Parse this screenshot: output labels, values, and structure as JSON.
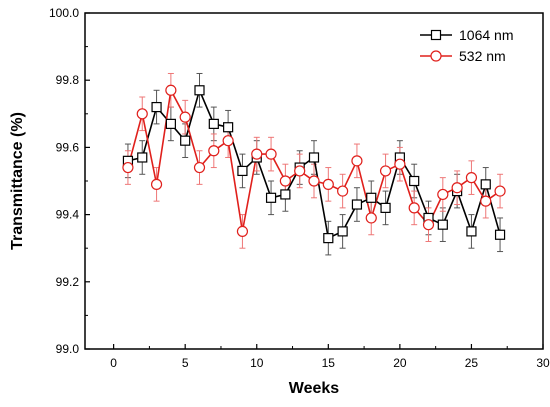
{
  "chart_data": {
    "type": "line",
    "xlabel": "Weeks",
    "ylabel": "Transmittance (%)",
    "xlim": [
      -2,
      30
    ],
    "ylim": [
      99.0,
      100.0
    ],
    "x_ticks": [
      0,
      5,
      10,
      15,
      20,
      25,
      30
    ],
    "y_ticks": [
      99.0,
      99.2,
      99.4,
      99.6,
      99.8,
      100.0
    ],
    "x_tick_labels": [
      "0",
      "5",
      "10",
      "15",
      "20",
      "25",
      "30"
    ],
    "y_tick_labels": [
      "99.0",
      "99.2",
      "99.4",
      "99.6",
      "99.8",
      "100.0"
    ],
    "legend_position": "top-right",
    "grid": false,
    "series": [
      {
        "name": "1064 nm",
        "color": "#000000",
        "marker": "square",
        "x": [
          1,
          2,
          3,
          4,
          5,
          6,
          7,
          8,
          9,
          10,
          11,
          12,
          13,
          14,
          15,
          16,
          17,
          18,
          19,
          20,
          21,
          22,
          23,
          24,
          25,
          26,
          27
        ],
        "y": [
          99.56,
          99.57,
          99.72,
          99.67,
          99.62,
          99.77,
          99.67,
          99.66,
          99.53,
          99.57,
          99.45,
          99.46,
          99.54,
          99.57,
          99.33,
          99.35,
          99.43,
          99.45,
          99.42,
          99.57,
          99.5,
          99.39,
          99.37,
          99.47,
          99.35,
          99.49,
          99.34
        ],
        "error": 0.05
      },
      {
        "name": "532 nm",
        "color": "#e0201c",
        "marker": "circle",
        "x": [
          1,
          2,
          3,
          4,
          5,
          6,
          7,
          8,
          9,
          10,
          11,
          12,
          13,
          14,
          15,
          16,
          17,
          18,
          19,
          20,
          21,
          22,
          23,
          24,
          25,
          26,
          27
        ],
        "y": [
          99.54,
          99.7,
          99.49,
          99.77,
          99.69,
          99.54,
          99.59,
          99.62,
          99.35,
          99.58,
          99.58,
          99.5,
          99.53,
          99.5,
          99.49,
          99.47,
          99.56,
          99.39,
          99.53,
          99.55,
          99.42,
          99.37,
          99.46,
          99.48,
          99.51,
          99.44,
          99.47
        ],
        "error": 0.05
      }
    ]
  }
}
